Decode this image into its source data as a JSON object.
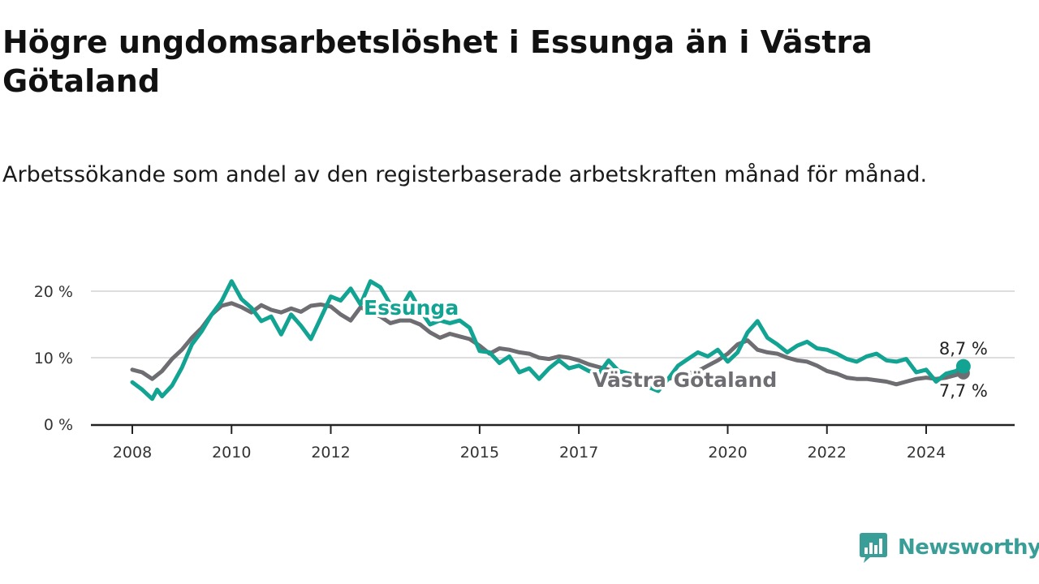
{
  "title": "Högre ungdomsarbetslöshet i Essunga än i Västra Götaland",
  "subtitle": "Arbetssökande som andel av den registerbaserade arbetskraften månad för månad.",
  "brand": {
    "name": "Newsworthy",
    "icon": "newsworthy-logo-icon"
  },
  "colors": {
    "essunga": "#12a393",
    "vastra": "#6e6d72",
    "grid": "#dddddd",
    "axis": "#222222"
  },
  "chart_data": {
    "type": "line",
    "x_unit": "decimal year",
    "y_unit": "percent",
    "ylim": [
      0,
      20
    ],
    "y_ticks": [
      {
        "value": 0,
        "label": "0 %"
      },
      {
        "value": 10,
        "label": "10 %"
      },
      {
        "value": 20,
        "label": "20 %"
      }
    ],
    "x_ticks": [
      {
        "value": 2008,
        "label": "2008"
      },
      {
        "value": 2010,
        "label": "2010"
      },
      {
        "value": 2012,
        "label": "2012"
      },
      {
        "value": 2015,
        "label": "2015"
      },
      {
        "value": 2017,
        "label": "2017"
      },
      {
        "value": 2020,
        "label": "2020"
      },
      {
        "value": 2022,
        "label": "2022"
      },
      {
        "value": 2024,
        "label": "2024"
      }
    ],
    "grid": true,
    "legend": "labels-inline",
    "series": [
      {
        "name": "Västra Götaland",
        "key": "vastra",
        "label": "Västra Götaland",
        "end_label": "7,7 %",
        "x": [
          2008.0,
          2008.2,
          2008.4,
          2008.6,
          2008.8,
          2009.0,
          2009.2,
          2009.4,
          2009.6,
          2009.8,
          2010.0,
          2010.2,
          2010.4,
          2010.6,
          2010.8,
          2011.0,
          2011.2,
          2011.4,
          2011.6,
          2011.8,
          2012.0,
          2012.2,
          2012.4,
          2012.6,
          2012.8,
          2013.0,
          2013.2,
          2013.4,
          2013.6,
          2013.8,
          2014.0,
          2014.2,
          2014.4,
          2014.6,
          2014.8,
          2015.0,
          2015.2,
          2015.4,
          2015.6,
          2015.8,
          2016.0,
          2016.2,
          2016.4,
          2016.6,
          2016.8,
          2017.0,
          2017.2,
          2017.4,
          2017.6,
          2017.8,
          2018.0,
          2018.2,
          2018.4,
          2018.6,
          2018.8,
          2019.0,
          2019.2,
          2019.4,
          2019.6,
          2019.8,
          2020.0,
          2020.2,
          2020.4,
          2020.6,
          2020.8,
          2021.0,
          2021.2,
          2021.4,
          2021.6,
          2021.8,
          2022.0,
          2022.2,
          2022.4,
          2022.6,
          2022.8,
          2023.0,
          2023.2,
          2023.4,
          2023.6,
          2023.8,
          2024.0,
          2024.2,
          2024.4,
          2024.6,
          2024.75
        ],
        "values": [
          8.2,
          7.8,
          6.8,
          8.0,
          9.8,
          11.2,
          13.0,
          14.5,
          16.5,
          17.8,
          18.2,
          17.6,
          16.8,
          17.9,
          17.2,
          16.8,
          17.4,
          16.9,
          17.8,
          18.0,
          17.7,
          16.5,
          15.6,
          17.6,
          16.8,
          16.2,
          15.2,
          15.6,
          15.6,
          15.0,
          13.8,
          13.0,
          13.6,
          13.2,
          12.8,
          11.8,
          10.6,
          11.4,
          11.2,
          10.8,
          10.6,
          10.0,
          9.8,
          10.2,
          10.0,
          9.6,
          9.0,
          8.6,
          8.2,
          8.0,
          7.6,
          7.2,
          6.8,
          6.6,
          6.8,
          7.2,
          7.6,
          8.0,
          8.8,
          9.6,
          10.6,
          12.0,
          12.6,
          11.2,
          10.8,
          10.6,
          10.0,
          9.6,
          9.4,
          8.8,
          8.0,
          7.6,
          7.0,
          6.8,
          6.8,
          6.6,
          6.4,
          6.0,
          6.4,
          6.8,
          7.0,
          6.8,
          7.0,
          7.4,
          7.7
        ]
      },
      {
        "name": "Essunga",
        "key": "essunga",
        "label": "Essunga",
        "end_label": "8,7 %",
        "x": [
          2008.0,
          2008.2,
          2008.4,
          2008.5,
          2008.6,
          2008.8,
          2009.0,
          2009.2,
          2009.4,
          2009.6,
          2009.8,
          2010.0,
          2010.2,
          2010.4,
          2010.6,
          2010.8,
          2011.0,
          2011.2,
          2011.4,
          2011.6,
          2011.8,
          2012.0,
          2012.2,
          2012.4,
          2012.6,
          2012.8,
          2013.0,
          2013.2,
          2013.4,
          2013.6,
          2013.8,
          2014.0,
          2014.2,
          2014.4,
          2014.6,
          2014.8,
          2015.0,
          2015.2,
          2015.4,
          2015.6,
          2015.8,
          2016.0,
          2016.2,
          2016.4,
          2016.6,
          2016.8,
          2017.0,
          2017.2,
          2017.4,
          2017.6,
          2017.8,
          2018.0,
          2018.2,
          2018.4,
          2018.6,
          2018.8,
          2019.0,
          2019.2,
          2019.4,
          2019.6,
          2019.8,
          2020.0,
          2020.2,
          2020.4,
          2020.6,
          2020.8,
          2021.0,
          2021.2,
          2021.4,
          2021.6,
          2021.8,
          2022.0,
          2022.2,
          2022.4,
          2022.6,
          2022.8,
          2023.0,
          2023.2,
          2023.4,
          2023.6,
          2023.8,
          2024.0,
          2024.2,
          2024.4,
          2024.6,
          2024.75
        ],
        "values": [
          6.3,
          5.2,
          3.8,
          5.2,
          4.2,
          5.8,
          8.5,
          12.0,
          14.0,
          16.5,
          18.5,
          21.5,
          18.8,
          17.5,
          15.5,
          16.2,
          13.5,
          16.5,
          14.8,
          12.8,
          16.0,
          19.2,
          18.6,
          20.4,
          18.0,
          21.5,
          20.6,
          18.0,
          17.2,
          19.8,
          17.2,
          15.0,
          15.6,
          15.2,
          15.6,
          14.5,
          11.0,
          10.8,
          9.2,
          10.2,
          7.8,
          8.4,
          6.8,
          8.4,
          9.6,
          8.4,
          8.8,
          8.0,
          7.6,
          9.6,
          8.0,
          7.6,
          6.2,
          5.6,
          5.0,
          6.8,
          8.8,
          9.8,
          10.8,
          10.2,
          11.2,
          9.4,
          10.8,
          13.8,
          15.5,
          13.0,
          12.0,
          10.8,
          11.8,
          12.4,
          11.4,
          11.2,
          10.6,
          9.8,
          9.4,
          10.2,
          10.6,
          9.6,
          9.4,
          9.8,
          7.8,
          8.2,
          6.4,
          7.6,
          8.0,
          8.7
        ]
      }
    ]
  }
}
